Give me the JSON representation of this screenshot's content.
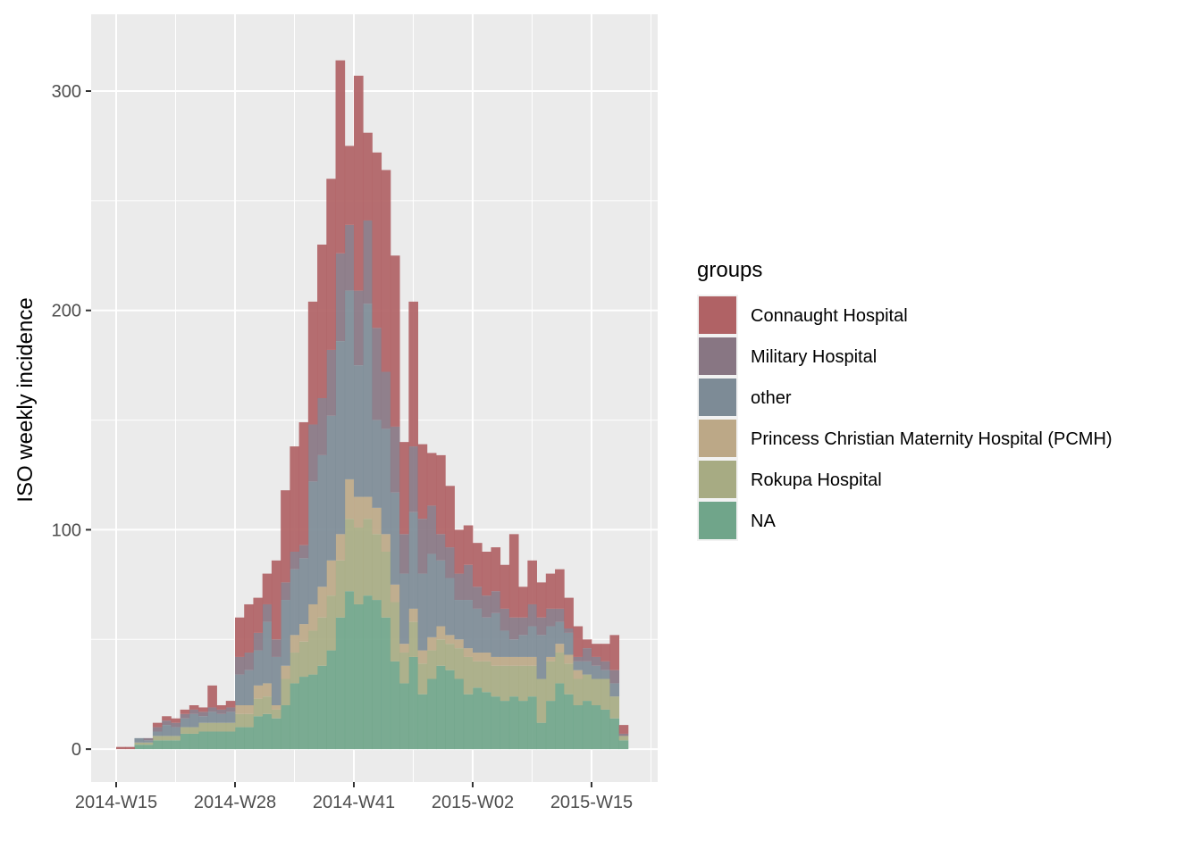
{
  "chart_data": {
    "type": "bar",
    "stacked": true,
    "bin_width_weeks": 1,
    "ylabel": "ISO weekly incidence",
    "xlabel": "",
    "ylim": [
      -15,
      335
    ],
    "y_ticks": [
      0,
      100,
      200,
      300
    ],
    "x_axis_unit": "ISO week",
    "x_ticks": [
      "2014-W15",
      "2014-W28",
      "2014-W41",
      "2015-W02",
      "2015-W15"
    ],
    "x": [
      "2014-W15",
      "2014-W16",
      "2014-W17",
      "2014-W18",
      "2014-W19",
      "2014-W20",
      "2014-W21",
      "2014-W22",
      "2014-W23",
      "2014-W24",
      "2014-W25",
      "2014-W26",
      "2014-W27",
      "2014-W28",
      "2014-W29",
      "2014-W30",
      "2014-W31",
      "2014-W32",
      "2014-W33",
      "2014-W34",
      "2014-W35",
      "2014-W36",
      "2014-W37",
      "2014-W38",
      "2014-W39",
      "2014-W40",
      "2014-W41",
      "2014-W42",
      "2014-W43",
      "2014-W44",
      "2014-W45",
      "2014-W46",
      "2014-W47",
      "2014-W48",
      "2014-W49",
      "2014-W50",
      "2014-W51",
      "2014-W52",
      "2015-W01",
      "2015-W02",
      "2015-W03",
      "2015-W04",
      "2015-W05",
      "2015-W06",
      "2015-W07",
      "2015-W08",
      "2015-W09",
      "2015-W10",
      "2015-W11",
      "2015-W12",
      "2015-W13",
      "2015-W14",
      "2015-W15",
      "2015-W16",
      "2015-W17",
      "2015-W18"
    ],
    "legend": {
      "title": "groups",
      "position": "right"
    },
    "grid": true,
    "panel_background": "#ebebeb",
    "series": [
      {
        "name": "NA",
        "color": "#70a58a",
        "values": [
          0,
          0,
          2,
          2,
          4,
          4,
          4,
          7,
          7,
          8,
          8,
          8,
          8,
          10,
          10,
          15,
          16,
          14,
          20,
          30,
          33,
          34,
          38,
          45,
          60,
          72,
          66,
          70,
          68,
          60,
          40,
          30,
          42,
          25,
          32,
          38,
          36,
          32,
          25,
          28,
          26,
          24,
          22,
          24,
          22,
          24,
          12,
          22,
          30,
          25,
          20,
          22,
          20,
          18,
          14,
          4
        ]
      },
      {
        "name": "Rokupa Hospital",
        "color": "#a7ab83",
        "values": [
          0,
          0,
          1,
          1,
          2,
          2,
          2,
          3,
          3,
          4,
          4,
          4,
          4,
          6,
          6,
          8,
          8,
          4,
          12,
          14,
          16,
          20,
          22,
          25,
          26,
          33,
          35,
          35,
          30,
          30,
          27,
          14,
          16,
          14,
          13,
          12,
          12,
          14,
          17,
          12,
          14,
          14,
          16,
          14,
          16,
          14,
          20,
          18,
          14,
          14,
          12,
          12,
          12,
          14,
          10,
          2
        ]
      },
      {
        "name": "Princess Christian Maternity Hospital (PCMH)",
        "color": "#bca887",
        "values": [
          0,
          0,
          0,
          0,
          0,
          0,
          0,
          0,
          0,
          0,
          0,
          0,
          0,
          4,
          4,
          6,
          6,
          2,
          6,
          8,
          8,
          12,
          14,
          16,
          12,
          18,
          14,
          10,
          12,
          8,
          8,
          4,
          6,
          6,
          6,
          6,
          4,
          4,
          4,
          4,
          4,
          4,
          4,
          4,
          4,
          4,
          0,
          2,
          4,
          4,
          4,
          0,
          0,
          0,
          0,
          0
        ]
      },
      {
        "name": "other",
        "color": "#7d8b96",
        "values": [
          0,
          0,
          2,
          1,
          2,
          5,
          4,
          4,
          6,
          3,
          5,
          4,
          5,
          14,
          16,
          16,
          28,
          22,
          30,
          30,
          30,
          56,
          60,
          66,
          88,
          86,
          60,
          88,
          40,
          48,
          42,
          32,
          44,
          35,
          38,
          30,
          26,
          18,
          22,
          20,
          16,
          20,
          12,
          8,
          10,
          14,
          20,
          14,
          10,
          10,
          4,
          6,
          6,
          4,
          6,
          0
        ]
      },
      {
        "name": "Military Hospital",
        "color": "#887683",
        "values": [
          0,
          0,
          0,
          1,
          2,
          2,
          2,
          2,
          2,
          2,
          2,
          2,
          2,
          8,
          8,
          8,
          8,
          8,
          8,
          8,
          6,
          26,
          26,
          30,
          40,
          30,
          34,
          38,
          42,
          26,
          30,
          18,
          30,
          25,
          22,
          12,
          14,
          12,
          16,
          10,
          10,
          10,
          10,
          10,
          8,
          10,
          8,
          8,
          6,
          2,
          2,
          6,
          4,
          4,
          6,
          1
        ]
      },
      {
        "name": "Connaught Hospital",
        "color": "#b06265",
        "values": [
          1,
          1,
          0,
          0,
          2,
          2,
          2,
          2,
          2,
          2,
          10,
          2,
          3,
          18,
          22,
          16,
          14,
          36,
          42,
          48,
          56,
          56,
          70,
          78,
          88,
          36,
          98,
          40,
          80,
          92,
          78,
          42,
          66,
          34,
          24,
          36,
          28,
          20,
          18,
          20,
          20,
          20,
          20,
          38,
          14,
          20,
          16,
          16,
          18,
          14,
          14,
          4,
          6,
          8,
          16,
          4
        ]
      }
    ]
  }
}
